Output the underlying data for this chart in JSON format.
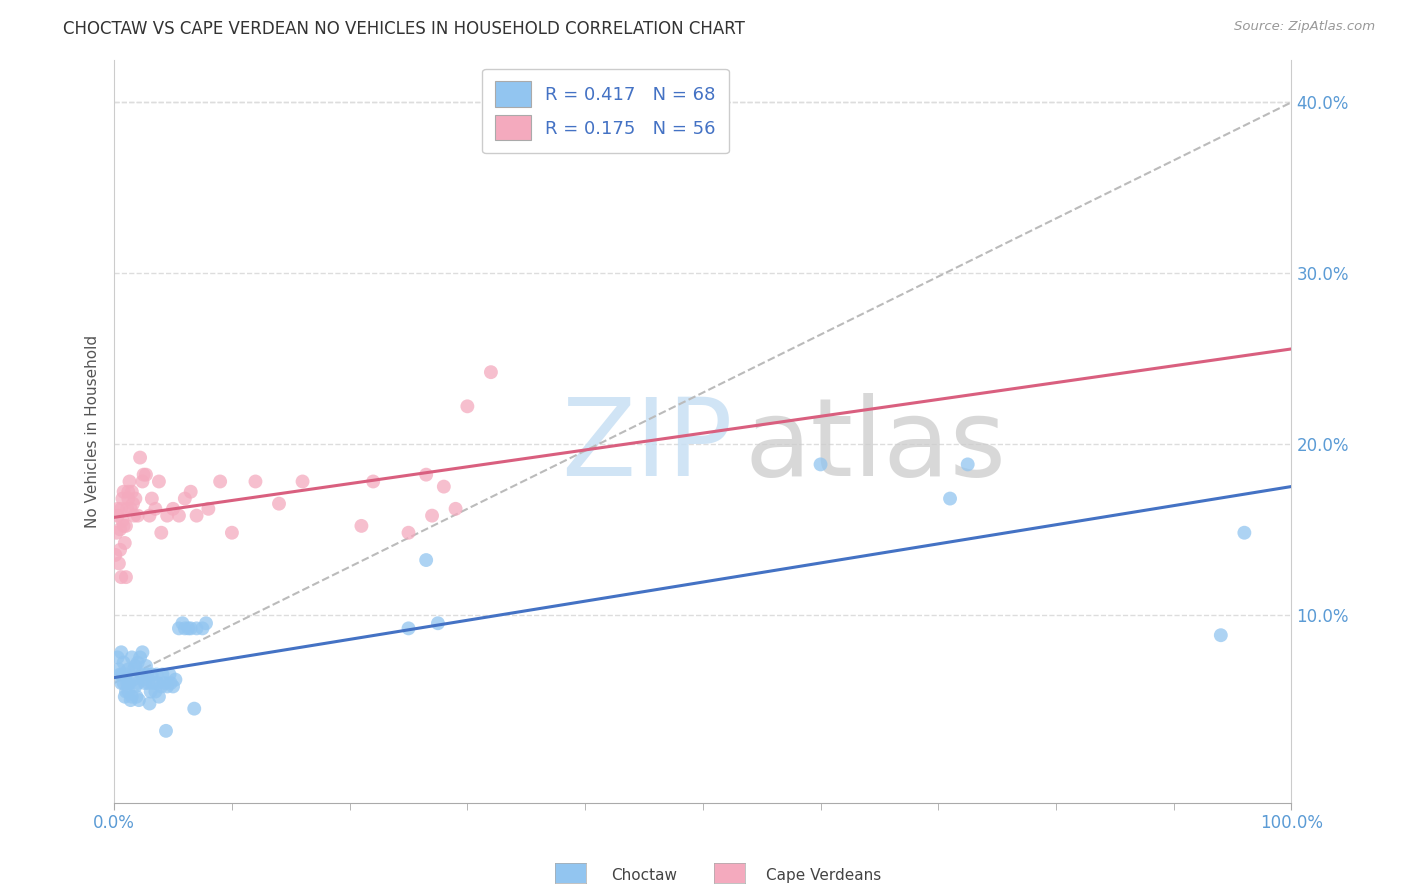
{
  "title": "CHOCTAW VS CAPE VERDEAN NO VEHICLES IN HOUSEHOLD CORRELATION CHART",
  "source": "Source: ZipAtlas.com",
  "ylabel": "No Vehicles in Household",
  "xlim": [
    0.0,
    1.0
  ],
  "ylim": [
    -0.01,
    0.425
  ],
  "choctaw_R": 0.417,
  "choctaw_N": 68,
  "capeverdean_R": 0.175,
  "capeverdean_N": 56,
  "choctaw_color": "#92C5F0",
  "choctaw_line_color": "#4472C4",
  "capeverdean_color": "#F4AABE",
  "capeverdean_line_color": "#D95F7F",
  "diag_line_color": "#BBBBBB",
  "grid_color": "#DDDDDD",
  "background_color": "#FFFFFF",
  "ytick_values": [
    0.1,
    0.2,
    0.3,
    0.4
  ],
  "ytick_labels": [
    "10.0%",
    "20.0%",
    "30.0%",
    "40.0%"
  ],
  "choctaw_x": [
    0.003,
    0.004,
    0.005,
    0.006,
    0.006,
    0.007,
    0.008,
    0.008,
    0.009,
    0.01,
    0.01,
    0.011,
    0.012,
    0.012,
    0.013,
    0.014,
    0.015,
    0.015,
    0.016,
    0.017,
    0.018,
    0.018,
    0.019,
    0.02,
    0.02,
    0.021,
    0.022,
    0.023,
    0.024,
    0.025,
    0.026,
    0.027,
    0.028,
    0.029,
    0.03,
    0.031,
    0.032,
    0.033,
    0.035,
    0.036,
    0.037,
    0.038,
    0.04,
    0.041,
    0.043,
    0.044,
    0.045,
    0.047,
    0.048,
    0.05,
    0.052,
    0.055,
    0.058,
    0.06,
    0.063,
    0.065,
    0.068,
    0.07,
    0.075,
    0.078,
    0.25,
    0.265,
    0.275,
    0.6,
    0.71,
    0.725,
    0.94,
    0.96
  ],
  "choctaw_y": [
    0.075,
    0.068,
    0.065,
    0.078,
    0.06,
    0.065,
    0.072,
    0.06,
    0.052,
    0.055,
    0.065,
    0.06,
    0.055,
    0.068,
    0.06,
    0.05,
    0.052,
    0.075,
    0.062,
    0.068,
    0.07,
    0.058,
    0.052,
    0.072,
    0.06,
    0.05,
    0.075,
    0.065,
    0.078,
    0.062,
    0.06,
    0.07,
    0.065,
    0.06,
    0.048,
    0.055,
    0.065,
    0.06,
    0.055,
    0.065,
    0.06,
    0.052,
    0.058,
    0.065,
    0.06,
    0.032,
    0.058,
    0.065,
    0.06,
    0.058,
    0.062,
    0.092,
    0.095,
    0.092,
    0.092,
    0.092,
    0.045,
    0.092,
    0.092,
    0.095,
    0.092,
    0.132,
    0.095,
    0.188,
    0.168,
    0.188,
    0.088,
    0.148
  ],
  "capeverdean_x": [
    0.001,
    0.002,
    0.003,
    0.003,
    0.004,
    0.005,
    0.005,
    0.006,
    0.006,
    0.007,
    0.007,
    0.008,
    0.008,
    0.009,
    0.01,
    0.01,
    0.011,
    0.012,
    0.012,
    0.013,
    0.014,
    0.015,
    0.016,
    0.017,
    0.018,
    0.02,
    0.022,
    0.024,
    0.025,
    0.027,
    0.03,
    0.032,
    0.035,
    0.038,
    0.04,
    0.045,
    0.05,
    0.055,
    0.06,
    0.065,
    0.07,
    0.08,
    0.09,
    0.1,
    0.12,
    0.14,
    0.16,
    0.21,
    0.22,
    0.25,
    0.265,
    0.27,
    0.28,
    0.29,
    0.3,
    0.32
  ],
  "capeverdean_y": [
    0.135,
    0.148,
    0.158,
    0.162,
    0.13,
    0.15,
    0.138,
    0.122,
    0.162,
    0.155,
    0.168,
    0.172,
    0.152,
    0.142,
    0.122,
    0.152,
    0.162,
    0.168,
    0.172,
    0.178,
    0.162,
    0.172,
    0.165,
    0.158,
    0.168,
    0.158,
    0.192,
    0.178,
    0.182,
    0.182,
    0.158,
    0.168,
    0.162,
    0.178,
    0.148,
    0.158,
    0.162,
    0.158,
    0.168,
    0.172,
    0.158,
    0.162,
    0.178,
    0.148,
    0.178,
    0.165,
    0.178,
    0.152,
    0.178,
    0.148,
    0.182,
    0.158,
    0.175,
    0.162,
    0.222,
    0.242
  ]
}
